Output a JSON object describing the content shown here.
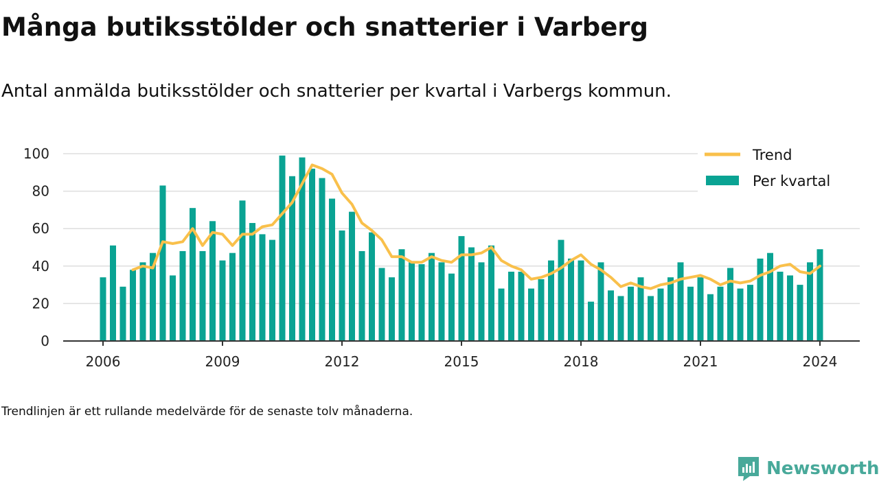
{
  "title": "Många butiksstölder och snatterier i Varberg",
  "subtitle": "Antal anmälda butiksstölder och snatterier per kvartal i Varbergs kommun.",
  "footnote": "Trendlinjen är ett rullande medelvärde för de senaste tolv månaderna.",
  "brand": "Newsworthy",
  "colors": {
    "bar": "#0aa393",
    "trend": "#f9c04b",
    "grid": "#dddddd",
    "axis": "#333333"
  },
  "chart_data": {
    "type": "bar",
    "x_ticks": [
      "2006",
      "2009",
      "2012",
      "2015",
      "2018",
      "2021",
      "2024"
    ],
    "y_ticks": [
      "0",
      "20",
      "40",
      "60",
      "80",
      "100"
    ],
    "ylim": [
      0,
      100
    ],
    "legend_position": "top-right",
    "series": [
      {
        "name": "Per kvartal",
        "type": "bar",
        "start": "2006 Q1",
        "values": [
          34,
          51,
          29,
          38,
          42,
          47,
          83,
          35,
          48,
          71,
          48,
          64,
          43,
          47,
          75,
          63,
          57,
          54,
          99,
          88,
          98,
          92,
          87,
          76,
          59,
          69,
          48,
          58,
          39,
          34,
          49,
          42,
          41,
          47,
          42,
          36,
          56,
          50,
          42,
          51,
          28,
          37,
          37,
          28,
          33,
          43,
          54,
          44,
          43,
          21,
          42,
          27,
          24,
          29,
          34,
          24,
          28,
          34,
          42,
          29,
          34,
          25,
          29,
          39,
          28,
          30,
          44,
          47,
          37,
          35,
          30,
          42,
          49
        ]
      },
      {
        "name": "Trend",
        "type": "line",
        "start": "2006 Q4",
        "values": [
          38,
          40,
          39,
          53,
          52,
          53,
          60,
          51,
          58,
          57,
          51,
          57,
          57,
          61,
          62,
          68,
          74,
          84,
          94,
          92,
          89,
          79,
          73,
          63,
          59,
          54,
          45,
          45,
          42,
          42,
          45,
          43,
          42,
          46,
          46,
          47,
          50,
          43,
          40,
          38,
          33,
          34,
          36,
          39,
          43,
          46,
          41,
          38,
          34,
          29,
          31,
          29,
          28,
          30,
          31,
          33,
          34,
          35,
          33,
          30,
          32,
          31,
          32,
          35,
          37,
          40,
          41,
          37,
          36,
          40
        ]
      }
    ]
  }
}
